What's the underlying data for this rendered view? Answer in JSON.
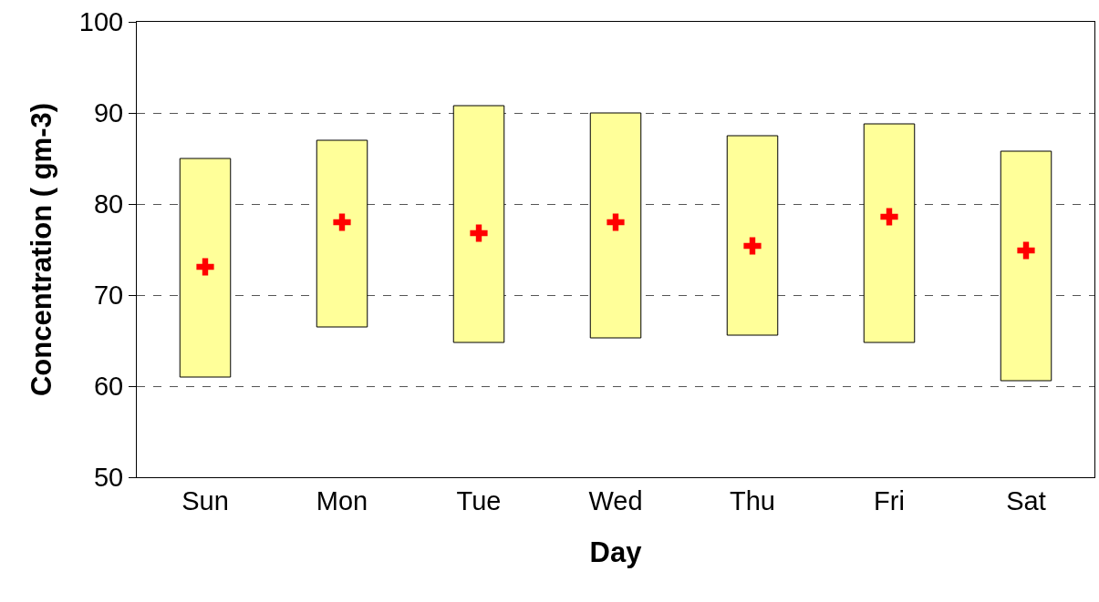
{
  "chart_data": {
    "type": "bar",
    "xlabel": "Day",
    "ylabel": "Concentration ( gm-3)",
    "categories": [
      "Sun",
      "Mon",
      "Tue",
      "Wed",
      "Thu",
      "Fri",
      "Sat"
    ],
    "series": [
      {
        "color": "#ffff99",
        "base": [
          61,
          66.5,
          64.8,
          65.3,
          65.6,
          64.8,
          60.6
        ],
        "values": [
          24,
          20.5,
          26,
          24.7,
          21.9,
          24,
          25.2
        ]
      },
      {
        "type": "scatter",
        "color": "#ff0000",
        "values": [
          73.1,
          78,
          76.8,
          78,
          75.4,
          78.6,
          74.9
        ]
      }
    ],
    "marker": "cross",
    "ylim": [
      50,
      100
    ],
    "yticks": [
      50,
      60,
      70,
      80,
      90,
      100
    ],
    "grid": "y",
    "legend": false
  }
}
